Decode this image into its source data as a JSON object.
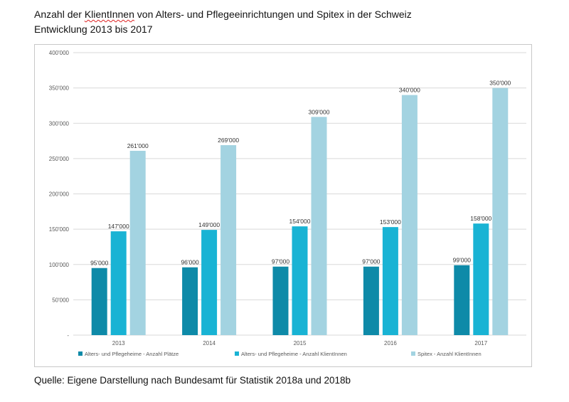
{
  "title": {
    "line1_prefix": "Anzahl der ",
    "line1_marked": "KlientInnen",
    "line1_suffix": " von Alters- und Pflegeeinrichtungen und Spitex in der Schweiz",
    "line2": "Entwicklung 2013 bis 2017"
  },
  "source": "Quelle: Eigene Darstellung nach Bundesamt für Statistik 2018a und 2018b",
  "colors": {
    "series1": "#0e8aa8",
    "series2": "#19b3d4",
    "series3": "#a3d3e1",
    "grid": "#d9d9d9",
    "axis_text": "#595959"
  },
  "chart_data": {
    "type": "bar",
    "categories": [
      "2013",
      "2014",
      "2015",
      "2016",
      "2017"
    ],
    "series": [
      {
        "name": "Alters- und Pflegeheime - Anzahl Plätze",
        "values": [
          95000,
          96000,
          97000,
          97000,
          99000
        ],
        "labels": [
          "95'000",
          "96'000",
          "97'000",
          "97'000",
          "99'000"
        ]
      },
      {
        "name": "Alters- und Pflegeheime - Anzahl KlientInnen",
        "values": [
          147000,
          149000,
          154000,
          153000,
          158000
        ],
        "labels": [
          "147'000",
          "149'000",
          "154'000",
          "153'000",
          "158'000"
        ]
      },
      {
        "name": "Spitex - Anzahl KlientInnen",
        "values": [
          261000,
          269000,
          309000,
          340000,
          350000
        ],
        "labels": [
          "261'000",
          "269'000",
          "309'000",
          "340'000",
          "350'000"
        ]
      }
    ],
    "ylim": [
      0,
      400000
    ],
    "yticks": [
      0,
      50000,
      100000,
      150000,
      200000,
      250000,
      300000,
      350000,
      400000
    ],
    "ytick_labels": [
      "-",
      "50'000",
      "100'000",
      "150'000",
      "200'000",
      "250'000",
      "300'000",
      "350'000",
      "400'000"
    ],
    "grid": true,
    "legend_position": "bottom"
  }
}
